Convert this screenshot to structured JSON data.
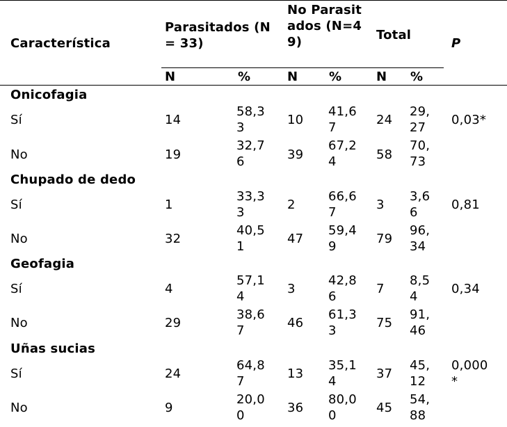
{
  "header": {
    "characteristic": "Característica",
    "parasitados": "Parasitados (N = 33)",
    "no_parasitados": "No Parasitados (N=49)",
    "total": "Total",
    "p": "P",
    "sub": {
      "n1": "N",
      "pct1": "%",
      "n2": "N",
      "pct2": "%",
      "n3": "N",
      "pct3": "%"
    }
  },
  "groups": [
    {
      "title": "Onicofagia",
      "rows": [
        {
          "label": "Sí",
          "n1": "14",
          "pct1": "58,33",
          "n2": "10",
          "pct2": "41,67",
          "n3": "24",
          "pct3": "29,27",
          "p": "0,03*"
        },
        {
          "label": "No",
          "n1": "19",
          "pct1": "32,76",
          "n2": "39",
          "pct2": "67,24",
          "n3": "58",
          "pct3": "70,73",
          "p": ""
        }
      ]
    },
    {
      "title": "Chupado de dedo",
      "rows": [
        {
          "label": "Sí",
          "n1": "1",
          "pct1": "33,33",
          "n2": "2",
          "pct2": "66,67",
          "n3": "3",
          "pct3": "3,66",
          "p": "0,81"
        },
        {
          "label": "No",
          "n1": "32",
          "pct1": "40,51",
          "n2": "47",
          "pct2": "59,49",
          "n3": "79",
          "pct3": "96,34",
          "p": ""
        }
      ]
    },
    {
      "title": "Geofagia",
      "rows": [
        {
          "label": "Sí",
          "n1": "4",
          "pct1": "57,14",
          "n2": "3",
          "pct2": "42,86",
          "n3": "7",
          "pct3": "8,54",
          "p": "0,34"
        },
        {
          "label": "No",
          "n1": "29",
          "pct1": "38,67",
          "n2": "46",
          "pct2": "61,33",
          "n3": "75",
          "pct3": "91,46",
          "p": ""
        }
      ]
    },
    {
      "title": "Uñas sucias",
      "rows": [
        {
          "label": "Sí",
          "n1": "24",
          "pct1": "64,87",
          "n2": "13",
          "pct2": "35,14",
          "n3": "37",
          "pct3": "45,12",
          "p": "0,000*"
        },
        {
          "label": "No",
          "n1": "9",
          "pct1": "20,00",
          "n2": "36",
          "pct2": "80,00",
          "n3": "45",
          "pct3": "54,88",
          "p": ""
        }
      ]
    }
  ]
}
